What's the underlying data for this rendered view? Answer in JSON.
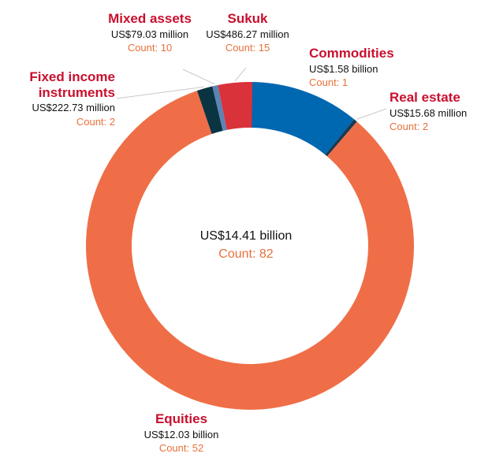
{
  "colors": {
    "label": "#c8102e",
    "count": "#e8703a",
    "value": "#111111",
    "leader": "#c9c9c9"
  },
  "chart_data": {
    "type": "donut",
    "title": "",
    "total": {
      "value": "US$14.41 billion",
      "count": "Count: 82"
    },
    "slices": [
      {
        "id": "commodities",
        "name": "Commodities",
        "value_text": "US$1.58 billion",
        "value": 1.58,
        "count_text": "Count: 1",
        "color": "#0067b1"
      },
      {
        "id": "real-estate",
        "name": "Real estate",
        "value_text": "US$15.68 million",
        "value": 0.01568,
        "count_text": "Count: 2",
        "color": "#1a3a4f"
      },
      {
        "id": "equities",
        "name": "Equities",
        "value_text": "US$12.03 billion",
        "value": 12.03,
        "count_text": "Count: 52",
        "color": "#ef6e47"
      },
      {
        "id": "fixed-income",
        "name": "Fixed income instruments",
        "name_lines": [
          "Fixed income",
          "instruments"
        ],
        "value_text": "US$222.73 million",
        "value": 0.22273,
        "count_text": "Count: 2",
        "color": "#0b3442"
      },
      {
        "id": "mixed-assets",
        "name": "Mixed assets",
        "value_text": "US$79.03 million",
        "value": 0.07903,
        "count_text": "Count: 10",
        "color": "#5b85b5"
      },
      {
        "id": "sukuk",
        "name": "Sukuk",
        "value_text": "US$486.27 million",
        "value": 0.48627,
        "count_text": "Count: 15",
        "color": "#d9323a"
      }
    ]
  }
}
